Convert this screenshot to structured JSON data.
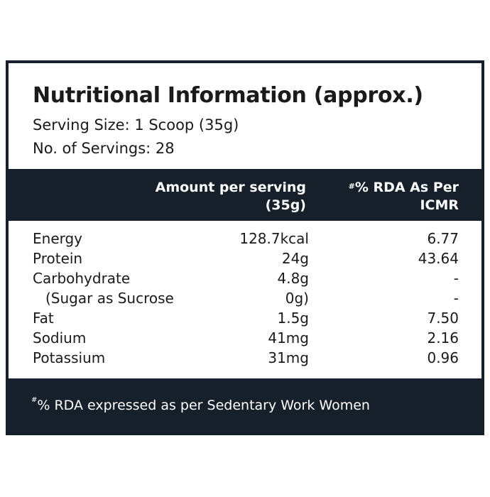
{
  "title": "Nutritional Information (approx.)",
  "serving_size": "Serving Size: 1 Scoop (35g)",
  "servings": "No. of Servings: 28",
  "headers": {
    "amount_line1": "Amount per serving",
    "amount_line2": "(35g)",
    "rda_mark": "#",
    "rda_line1": "% RDA As Per",
    "rda_line2": "ICMR"
  },
  "rows": [
    {
      "name": "Energy",
      "amount": "128.7kcal",
      "rda": "6.77"
    },
    {
      "name": "Protein",
      "amount": "24g",
      "rda": "43.64"
    },
    {
      "name": "Carbohydrate",
      "amount": "4.8g",
      "rda": "-"
    },
    {
      "name": "(Sugar as Sucrose",
      "amount": "0g)",
      "rda": "-"
    },
    {
      "name": "Fat",
      "amount": "1.5g",
      "rda": "7.50"
    },
    {
      "name": "Sodium",
      "amount": "41mg",
      "rda": "2.16"
    },
    {
      "name": "Potassium",
      "amount": "31mg",
      "rda": "0.96"
    }
  ],
  "footnote_mark": "#",
  "footnote": "% RDA expressed as per Sedentary Work Women"
}
